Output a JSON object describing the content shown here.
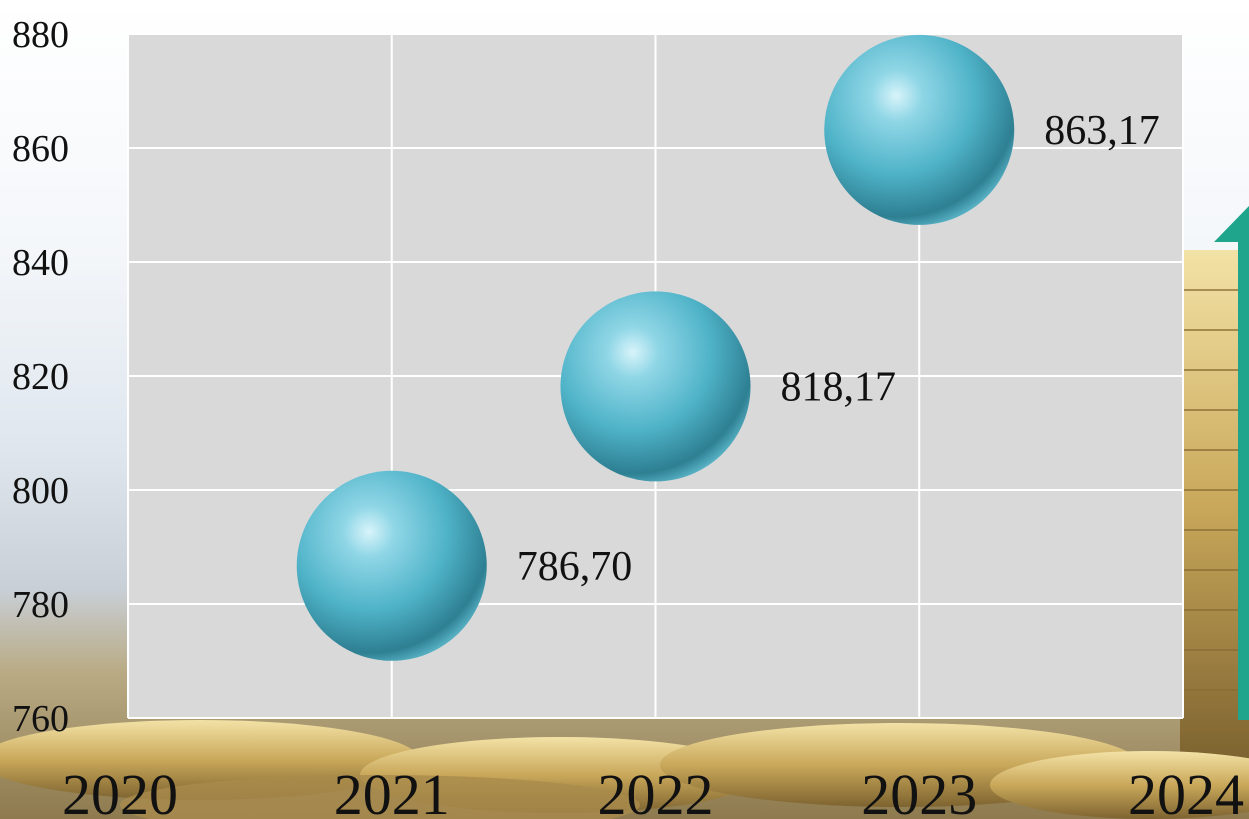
{
  "chart_data": {
    "type": "scatter",
    "title": "",
    "xlabel": "",
    "ylabel": "",
    "x": [
      2021,
      2022,
      2023
    ],
    "y": [
      786.7,
      818.17,
      863.17
    ],
    "data_labels": [
      "786,70",
      "818,17",
      "863,17"
    ],
    "xlim": [
      2020,
      2024
    ],
    "ylim": [
      760,
      880
    ],
    "x_ticks": [
      "2020",
      "2021",
      "2022",
      "2023",
      "2024"
    ],
    "y_ticks": [
      "760",
      "780",
      "800",
      "820",
      "840",
      "860",
      "880"
    ],
    "grid": true,
    "legend": "none",
    "marker": "sphere",
    "colors": {
      "marker": "#4fb3c8",
      "plot_background": "#d9d9d9",
      "gridline": "#ffffff",
      "arrow": "#1fa58c",
      "text": "#111111"
    }
  }
}
